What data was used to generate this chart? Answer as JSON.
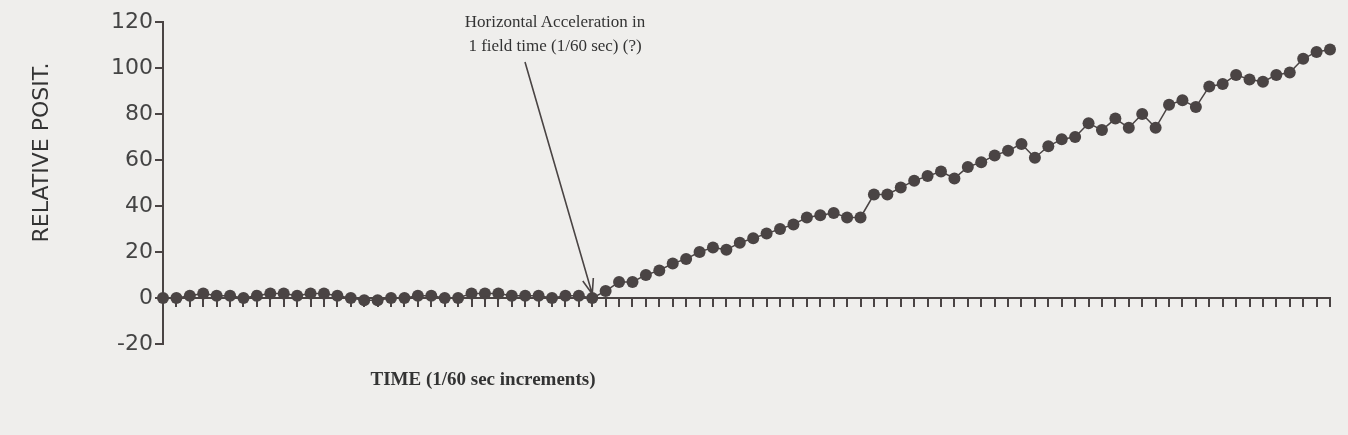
{
  "chart_data": {
    "type": "line",
    "xlabel": "TIME (1/60 sec increments)",
    "ylabel": "RELATIVE POSIT.",
    "annotations": [
      "Horizontal Acceleration in\n1 field time (1/60 sec) (?)"
    ],
    "categories": [
      null,
      null,
      null,
      null,
      null,
      null,
      null,
      null,
      null,
      null,
      null,
      null,
      null,
      null,
      null,
      null,
      null,
      null,
      null,
      null,
      null,
      null,
      null,
      null,
      null,
      null,
      null,
      null,
      null,
      null,
      null,
      null,
      null,
      null,
      null,
      null,
      null,
      null,
      null,
      null,
      null,
      null,
      null,
      null,
      null,
      null,
      null,
      null,
      null,
      null,
      null,
      null,
      null,
      null,
      null,
      null,
      null,
      null,
      null,
      null,
      null,
      null,
      null,
      null,
      null,
      null,
      null,
      null,
      null,
      null,
      null,
      null,
      null,
      null,
      null,
      null,
      null,
      null,
      null,
      null,
      null,
      null,
      null,
      null,
      null,
      null,
      null,
      null
    ],
    "series": [
      {
        "color": "#4a4444",
        "values": [
          0,
          0,
          1,
          2,
          1,
          1,
          0,
          1,
          2,
          2,
          1,
          2,
          2,
          1,
          0,
          -1,
          -1,
          0,
          0,
          1,
          1,
          0,
          0,
          2,
          2,
          2,
          1,
          1,
          1,
          0,
          1,
          1,
          0,
          3,
          7,
          7,
          10,
          12,
          15,
          17,
          20,
          22,
          21,
          24,
          26,
          28,
          30,
          32,
          35,
          36,
          37,
          35,
          35,
          45,
          45,
          48,
          51,
          53,
          55,
          52,
          57,
          59,
          62,
          64,
          67,
          61,
          66,
          69,
          70,
          76,
          73,
          78,
          74,
          80,
          74,
          84,
          86,
          83,
          92,
          93,
          97,
          95,
          94,
          97,
          98,
          104,
          107,
          108
        ]
      }
    ],
    "ylim": [
      -20,
      120
    ],
    "yticks": [
      -20,
      0,
      20,
      40,
      60,
      80,
      100,
      120
    ],
    "tick_labels": "y",
    "legend": false,
    "marker": "circle",
    "line_style": "solid"
  }
}
